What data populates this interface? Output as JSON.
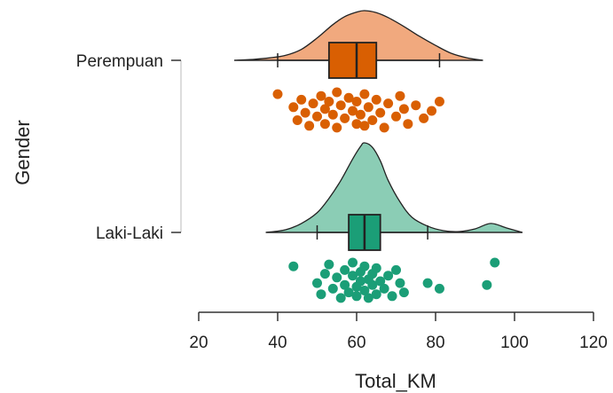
{
  "chart_data": {
    "type": "raincloud",
    "xlabel": "Total_KM",
    "ylabel": "Gender",
    "xlim": [
      20,
      120
    ],
    "xticks": [
      20,
      40,
      60,
      80,
      100,
      120
    ],
    "grid": false,
    "groups": [
      {
        "name": "Perempuan",
        "fill_color": "#F1A97E",
        "box_color": "#D95F02",
        "point_color": "#D95F02",
        "density_range": [
          29,
          92
        ],
        "density": [
          [
            29,
            0.0
          ],
          [
            34,
            0.02
          ],
          [
            38,
            0.05
          ],
          [
            42,
            0.1
          ],
          [
            46,
            0.22
          ],
          [
            50,
            0.45
          ],
          [
            54,
            0.72
          ],
          [
            57,
            0.88
          ],
          [
            60,
            0.97
          ],
          [
            62,
            1.0
          ],
          [
            65,
            0.96
          ],
          [
            68,
            0.86
          ],
          [
            72,
            0.68
          ],
          [
            76,
            0.48
          ],
          [
            80,
            0.3
          ],
          [
            84,
            0.14
          ],
          [
            88,
            0.05
          ],
          [
            92,
            0.0
          ]
        ],
        "box": {
          "whisker_low": 40,
          "q1": 53,
          "median": 60,
          "q3": 65,
          "whisker_high": 81
        },
        "points": [
          {
            "x": 40,
            "j": 0.05
          },
          {
            "x": 44,
            "j": 0.4
          },
          {
            "x": 45,
            "j": 0.75
          },
          {
            "x": 46,
            "j": 0.2
          },
          {
            "x": 47,
            "j": 0.55
          },
          {
            "x": 48,
            "j": 0.9
          },
          {
            "x": 49,
            "j": 0.3
          },
          {
            "x": 50,
            "j": 0.65
          },
          {
            "x": 51,
            "j": 0.1
          },
          {
            "x": 52,
            "j": 0.45
          },
          {
            "x": 52,
            "j": 0.85
          },
          {
            "x": 53,
            "j": 0.25
          },
          {
            "x": 54,
            "j": 0.6
          },
          {
            "x": 55,
            "j": 0.0
          },
          {
            "x": 55,
            "j": 0.95
          },
          {
            "x": 56,
            "j": 0.35
          },
          {
            "x": 57,
            "j": 0.7
          },
          {
            "x": 58,
            "j": 0.15
          },
          {
            "x": 59,
            "j": 0.5
          },
          {
            "x": 60,
            "j": 0.85
          },
          {
            "x": 60,
            "j": 0.25
          },
          {
            "x": 61,
            "j": 0.6
          },
          {
            "x": 62,
            "j": 0.05
          },
          {
            "x": 62,
            "j": 0.9
          },
          {
            "x": 63,
            "j": 0.4
          },
          {
            "x": 64,
            "j": 0.75
          },
          {
            "x": 65,
            "j": 0.2
          },
          {
            "x": 66,
            "j": 0.55
          },
          {
            "x": 67,
            "j": 0.95
          },
          {
            "x": 68,
            "j": 0.3
          },
          {
            "x": 70,
            "j": 0.65
          },
          {
            "x": 71,
            "j": 0.1
          },
          {
            "x": 72,
            "j": 0.45
          },
          {
            "x": 73,
            "j": 0.85
          },
          {
            "x": 75,
            "j": 0.35
          },
          {
            "x": 77,
            "j": 0.7
          },
          {
            "x": 79,
            "j": 0.5
          },
          {
            "x": 81,
            "j": 0.25
          }
        ]
      },
      {
        "name": "Laki-Laki",
        "fill_color": "#8BCDB5",
        "box_color": "#1B9E77",
        "point_color": "#1B9E77",
        "density_range": [
          37,
          102
        ],
        "density": [
          [
            37,
            0.0
          ],
          [
            42,
            0.03
          ],
          [
            46,
            0.1
          ],
          [
            50,
            0.22
          ],
          [
            53,
            0.38
          ],
          [
            56,
            0.58
          ],
          [
            59,
            0.82
          ],
          [
            61,
            0.96
          ],
          [
            62,
            1.0
          ],
          [
            64,
            0.95
          ],
          [
            66,
            0.8
          ],
          [
            68,
            0.58
          ],
          [
            71,
            0.34
          ],
          [
            74,
            0.17
          ],
          [
            78,
            0.07
          ],
          [
            82,
            0.02
          ],
          [
            86,
            0.01
          ],
          [
            90,
            0.04
          ],
          [
            94,
            0.1
          ],
          [
            98,
            0.05
          ],
          [
            102,
            0.0
          ]
        ],
        "box": {
          "whisker_low": 50,
          "q1": 58,
          "median": 62,
          "q3": 66,
          "whisker_high": 78
        },
        "points": [
          {
            "x": 44,
            "j": 0.1
          },
          {
            "x": 50,
            "j": 0.55
          },
          {
            "x": 51,
            "j": 0.85
          },
          {
            "x": 52,
            "j": 0.3
          },
          {
            "x": 53,
            "j": 0.05
          },
          {
            "x": 54,
            "j": 0.7
          },
          {
            "x": 55,
            "j": 0.4
          },
          {
            "x": 56,
            "j": 0.95
          },
          {
            "x": 57,
            "j": 0.2
          },
          {
            "x": 57,
            "j": 0.6
          },
          {
            "x": 58,
            "j": 0.8
          },
          {
            "x": 59,
            "j": 0.35
          },
          {
            "x": 59,
            "j": 0.0
          },
          {
            "x": 60,
            "j": 0.65
          },
          {
            "x": 60,
            "j": 0.9
          },
          {
            "x": 61,
            "j": 0.25
          },
          {
            "x": 61,
            "j": 0.5
          },
          {
            "x": 62,
            "j": 0.75
          },
          {
            "x": 62,
            "j": 0.1
          },
          {
            "x": 63,
            "j": 0.45
          },
          {
            "x": 63,
            "j": 0.95
          },
          {
            "x": 64,
            "j": 0.3
          },
          {
            "x": 64,
            "j": 0.6
          },
          {
            "x": 65,
            "j": 0.85
          },
          {
            "x": 65,
            "j": 0.15
          },
          {
            "x": 66,
            "j": 0.5
          },
          {
            "x": 67,
            "j": 0.7
          },
          {
            "x": 68,
            "j": 0.35
          },
          {
            "x": 69,
            "j": 0.9
          },
          {
            "x": 70,
            "j": 0.2
          },
          {
            "x": 71,
            "j": 0.55
          },
          {
            "x": 72,
            "j": 0.8
          },
          {
            "x": 78,
            "j": 0.55
          },
          {
            "x": 81,
            "j": 0.7
          },
          {
            "x": 93,
            "j": 0.6
          },
          {
            "x": 95,
            "j": 0.0
          }
        ]
      }
    ]
  }
}
